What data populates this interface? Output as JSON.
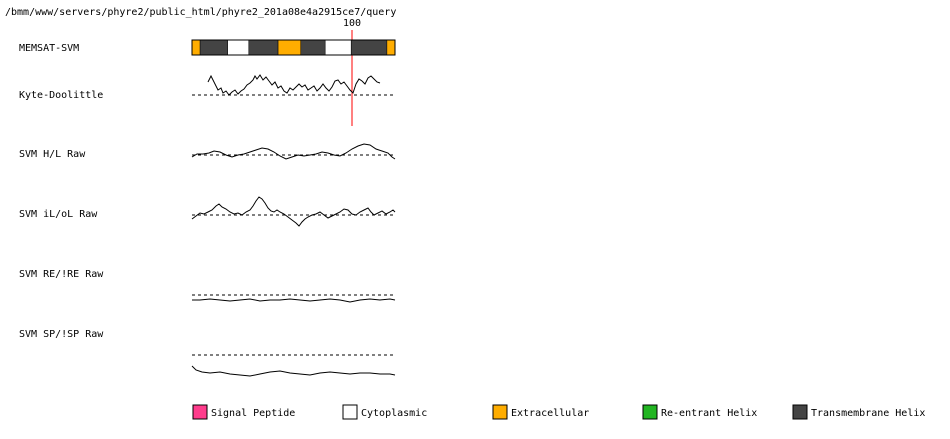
{
  "path_title": "/bmm/www/servers/phyre2/public_html/phyre2_201a08e4a2915ce7/query",
  "marker": {
    "label": "100",
    "position": 100
  },
  "sequence_length": 125,
  "tracks": [
    {
      "id": "memsat",
      "label": "MEMSAT-SVM"
    },
    {
      "id": "kd",
      "label": "Kyte-Doolittle"
    },
    {
      "id": "hl",
      "label": "SVM H/L Raw"
    },
    {
      "id": "ilol",
      "label": "SVM iL/oL Raw"
    },
    {
      "id": "re",
      "label": "SVM RE/!RE Raw"
    },
    {
      "id": "sp",
      "label": "SVM SP/!SP Raw"
    }
  ],
  "memsat_segments": [
    {
      "type": "extracellular",
      "start": 0,
      "end": 5
    },
    {
      "type": "transmembrane-helix",
      "start": 5,
      "end": 22
    },
    {
      "type": "cytoplasmic",
      "start": 22,
      "end": 35
    },
    {
      "type": "transmembrane-helix",
      "start": 35,
      "end": 53
    },
    {
      "type": "extracellular",
      "start": 53,
      "end": 67
    },
    {
      "type": "transmembrane-helix",
      "start": 67,
      "end": 82
    },
    {
      "type": "cytoplasmic",
      "start": 82,
      "end": 98
    },
    {
      "type": "transmembrane-helix",
      "start": 98,
      "end": 120
    },
    {
      "type": "extracellular",
      "start": 120,
      "end": 125
    }
  ],
  "legend": [
    {
      "label": "Signal Peptide",
      "color": "#ff3c8c"
    },
    {
      "label": "Cytoplasmic",
      "color": "#ffffff"
    },
    {
      "label": "Extracellular",
      "color": "#ffad00"
    },
    {
      "label": "Re-entrant Helix",
      "color": "#22b522"
    },
    {
      "label": "Transmembrane Helix",
      "color": "#444444"
    }
  ],
  "colors": {
    "marker": "#ff0000",
    "transmembrane-helix": "#444444",
    "cytoplasmic": "#ffffff",
    "extracellular": "#ffad00",
    "signal-peptide": "#ff3c8c",
    "re-entrant-helix": "#22b522"
  }
}
